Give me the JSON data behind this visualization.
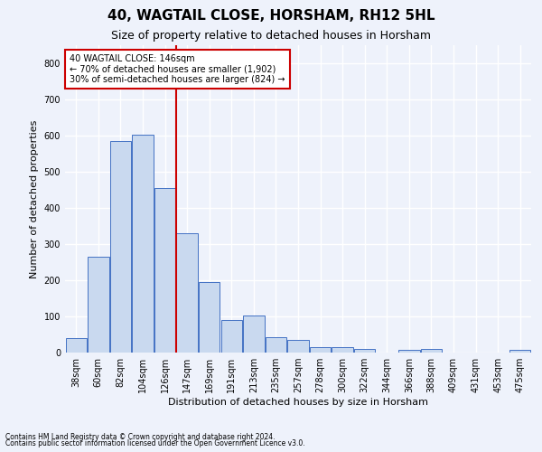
{
  "title": "40, WAGTAIL CLOSE, HORSHAM, RH12 5HL",
  "subtitle": "Size of property relative to detached houses in Horsham",
  "xlabel": "Distribution of detached houses by size in Horsham",
  "ylabel": "Number of detached properties",
  "categories": [
    "38sqm",
    "60sqm",
    "82sqm",
    "104sqm",
    "126sqm",
    "147sqm",
    "169sqm",
    "191sqm",
    "213sqm",
    "235sqm",
    "257sqm",
    "278sqm",
    "300sqm",
    "322sqm",
    "344sqm",
    "366sqm",
    "388sqm",
    "409sqm",
    "431sqm",
    "453sqm",
    "475sqm"
  ],
  "values": [
    40,
    265,
    585,
    603,
    455,
    330,
    195,
    90,
    103,
    42,
    34,
    15,
    14,
    10,
    0,
    8,
    10,
    0,
    0,
    0,
    8
  ],
  "bar_color": "#c9d9ef",
  "bar_edge_color": "#4472c4",
  "vline_index": 4.5,
  "vline_color": "#cc0000",
  "annotation_text": "40 WAGTAIL CLOSE: 146sqm\n← 70% of detached houses are smaller (1,902)\n30% of semi-detached houses are larger (824) →",
  "annotation_box_color": "#ffffff",
  "annotation_box_edge": "#cc0000",
  "ylim": [
    0,
    850
  ],
  "yticks": [
    0,
    100,
    200,
    300,
    400,
    500,
    600,
    700,
    800
  ],
  "footnote1": "Contains HM Land Registry data © Crown copyright and database right 2024.",
  "footnote2": "Contains public sector information licensed under the Open Government Licence v3.0.",
  "background_color": "#eef2fb",
  "plot_bg_color": "#eef2fb",
  "grid_color": "#ffffff",
  "title_fontsize": 11,
  "subtitle_fontsize": 9,
  "xlabel_fontsize": 8,
  "ylabel_fontsize": 8,
  "tick_fontsize": 7,
  "footnote_fontsize": 5.5
}
